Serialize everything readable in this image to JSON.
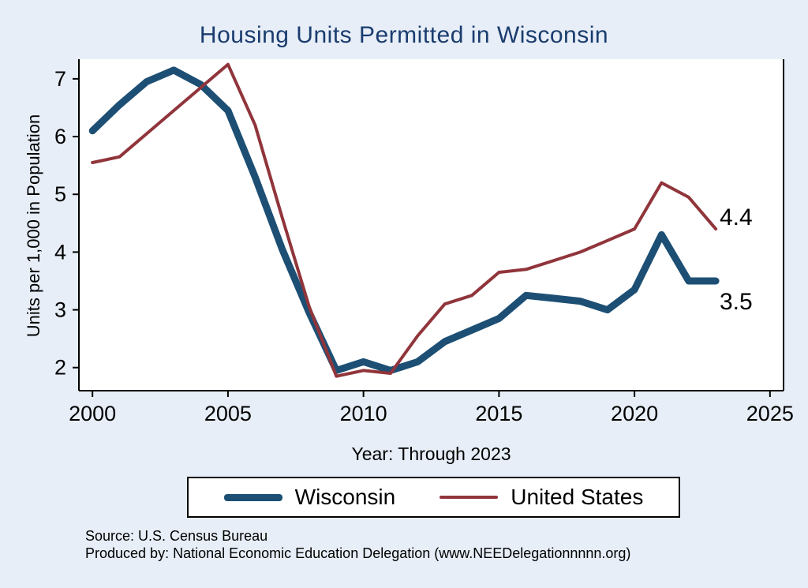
{
  "title": "Housing Units Permitted in Wisconsin",
  "axes": {
    "ylabel": "Units per 1,000 in Population",
    "xlabel": "Year: Through 2023"
  },
  "end_labels": {
    "united_states": "4.4",
    "wisconsin": "3.5"
  },
  "legend": {
    "items": [
      {
        "label": "Wisconsin",
        "color": "#1d4f74"
      },
      {
        "label": "United States",
        "color": "#90353b"
      }
    ]
  },
  "footer": {
    "source": "Source: U.S. Census Bureau",
    "produced_by": "Produced by: National Economic Education Delegation (www.NEEDelegationnnnn.org)"
  },
  "colors": {
    "background": "#e7eef7",
    "plot_background": "#ffffff",
    "title": "#1a3c6e",
    "axis": "#000000",
    "wisconsin": "#1d4f74",
    "united_states": "#90353b"
  },
  "chart_data": {
    "type": "line",
    "title": "Housing Units Permitted in Wisconsin",
    "xlabel": "Year: Through 2023",
    "ylabel": "Units per 1,000 in Population",
    "x": [
      2000,
      2001,
      2002,
      2003,
      2004,
      2005,
      2006,
      2007,
      2008,
      2009,
      2010,
      2011,
      2012,
      2013,
      2014,
      2015,
      2016,
      2017,
      2018,
      2019,
      2020,
      2021,
      2022,
      2023
    ],
    "series": [
      {
        "name": "Wisconsin",
        "color": "#1d4f74",
        "line_width": 9,
        "values": [
          6.1,
          6.55,
          6.95,
          7.15,
          6.9,
          6.45,
          5.3,
          4.05,
          2.95,
          1.95,
          2.1,
          1.95,
          2.1,
          2.45,
          2.65,
          2.85,
          3.25,
          3.2,
          3.15,
          3.0,
          3.35,
          4.3,
          3.5,
          3.5
        ]
      },
      {
        "name": "United States",
        "color": "#90353b",
        "line_width": 4,
        "values": [
          5.55,
          5.65,
          6.05,
          6.45,
          6.85,
          7.25,
          6.2,
          4.6,
          3.05,
          1.85,
          1.95,
          1.9,
          2.55,
          3.1,
          3.25,
          3.65,
          3.7,
          3.85,
          4.0,
          4.2,
          4.4,
          5.2,
          4.95,
          4.4
        ]
      }
    ],
    "xlim": [
      1999.5,
      2025.5
    ],
    "ylim": [
      1.6,
      7.34
    ],
    "xticks": [
      2000,
      2005,
      2010,
      2015,
      2020,
      2025
    ],
    "yticks": [
      2,
      3,
      4,
      5,
      6,
      7
    ],
    "grid": false,
    "legend_position": "bottom"
  }
}
